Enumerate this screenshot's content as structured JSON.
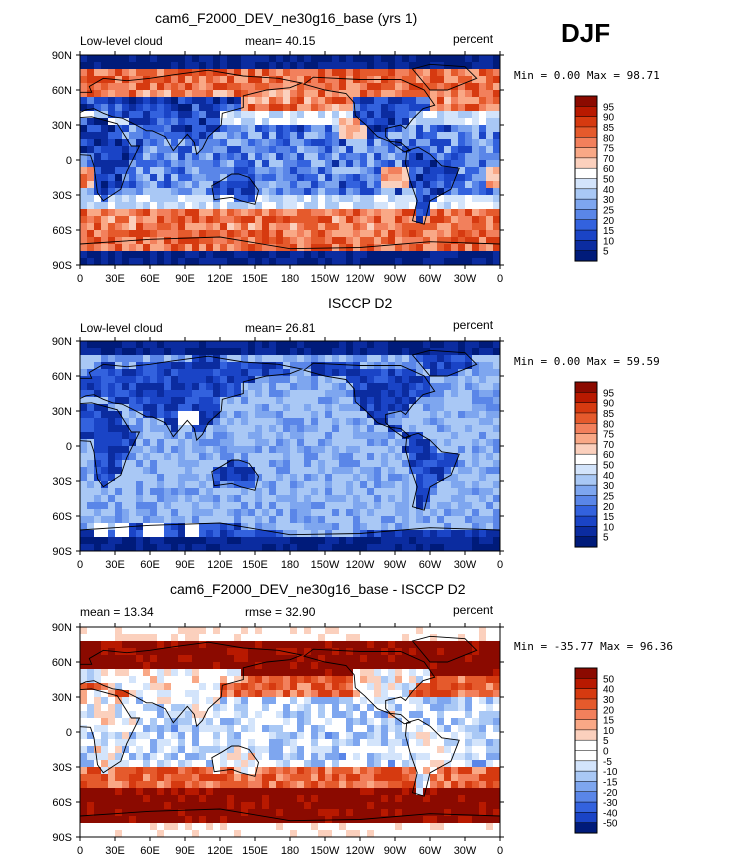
{
  "season": "DJF",
  "ticks": {
    "lat": [
      "90N",
      "60N",
      "30N",
      "0",
      "30S",
      "60S",
      "90S"
    ],
    "lon": [
      "0",
      "30E",
      "60E",
      "90E",
      "120E",
      "150E",
      "180",
      "150W",
      "120W",
      "90W",
      "60W",
      "30W",
      "0"
    ]
  },
  "panels": [
    {
      "title": "cam6_F2000_DEV_ne30g16_base (yrs 1)",
      "left_label": "Low-level cloud",
      "mid_label": "mean=  40.15",
      "right_label": "percent",
      "minmax": "Min =   0.00 Max =  98.71",
      "levels": [
        "95",
        "90",
        "85",
        "80",
        "75",
        "70",
        "60",
        "50",
        "40",
        "30",
        "25",
        "20",
        "15",
        "10",
        "5"
      ],
      "colors": [
        "#8b0a00",
        "#b81900",
        "#d63a10",
        "#e55a2c",
        "#f2805c",
        "#f9a886",
        "#fbd0bd",
        "#ffffff",
        "#d3e4fb",
        "#a9c8f5",
        "#7ea6ef",
        "#5a86e8",
        "#3362de",
        "#1a44c6",
        "#0b2ca0",
        "#001b7a"
      ]
    },
    {
      "title": "ISCCP D2",
      "left_label": "Low-level cloud",
      "mid_label": "mean=  26.81",
      "right_label": "percent",
      "minmax": "Min =   0.00 Max =  59.59",
      "levels": [
        "95",
        "90",
        "85",
        "80",
        "75",
        "70",
        "60",
        "50",
        "40",
        "30",
        "25",
        "20",
        "15",
        "10",
        "5"
      ],
      "colors": [
        "#8b0a00",
        "#b81900",
        "#d63a10",
        "#e55a2c",
        "#f2805c",
        "#f9a886",
        "#fbd0bd",
        "#ffffff",
        "#d3e4fb",
        "#a9c8f5",
        "#7ea6ef",
        "#5a86e8",
        "#3362de",
        "#1a44c6",
        "#0b2ca0",
        "#001b7a"
      ]
    },
    {
      "title": "cam6_F2000_DEV_ne30g16_base - ISCCP D2",
      "left_label": "mean =  13.34",
      "mid_label": "rmse =  32.90",
      "right_label": "percent",
      "minmax": "Min = -35.77 Max =  96.36",
      "levels": [
        "50",
        "40",
        "30",
        "20",
        "15",
        "10",
        "5",
        "0",
        "-5",
        "-10",
        "-15",
        "-20",
        "-30",
        "-40",
        "-50"
      ],
      "colors": [
        "#8b0a00",
        "#b81900",
        "#d63a10",
        "#e55a2c",
        "#f2805c",
        "#f9a886",
        "#fbd0bd",
        "#ffffff",
        "#ffffff",
        "#d3e4fb",
        "#a9c8f5",
        "#7ea6ef",
        "#5a86e8",
        "#3362de",
        "#1a44c6",
        "#001b7a"
      ]
    }
  ],
  "chart_data": [
    {
      "type": "heatmap",
      "title": "cam6_F2000_DEV_ne30g16_base (yrs 1)",
      "variable": "Low-level cloud",
      "units": "percent",
      "mean": 40.15,
      "min": 0.0,
      "max": 98.71,
      "contour_levels": [
        5,
        10,
        15,
        20,
        25,
        30,
        40,
        50,
        60,
        70,
        75,
        80,
        85,
        90,
        95
      ],
      "xlim": [
        0,
        360
      ],
      "ylim": [
        -90,
        90
      ]
    },
    {
      "type": "heatmap",
      "title": "ISCCP D2",
      "variable": "Low-level cloud",
      "units": "percent",
      "mean": 26.81,
      "min": 0.0,
      "max": 59.59,
      "contour_levels": [
        5,
        10,
        15,
        20,
        25,
        30,
        40,
        50,
        60,
        70,
        75,
        80,
        85,
        90,
        95
      ],
      "xlim": [
        0,
        360
      ],
      "ylim": [
        -90,
        90
      ]
    },
    {
      "type": "heatmap",
      "title": "cam6_F2000_DEV_ne30g16_base - ISCCP D2",
      "units": "percent",
      "mean": 13.34,
      "rmse": 32.9,
      "min": -35.77,
      "max": 96.36,
      "contour_levels": [
        -50,
        -40,
        -30,
        -20,
        -15,
        -10,
        -5,
        0,
        5,
        10,
        15,
        20,
        30,
        40,
        50
      ],
      "xlim": [
        0,
        360
      ],
      "ylim": [
        -90,
        90
      ]
    }
  ]
}
